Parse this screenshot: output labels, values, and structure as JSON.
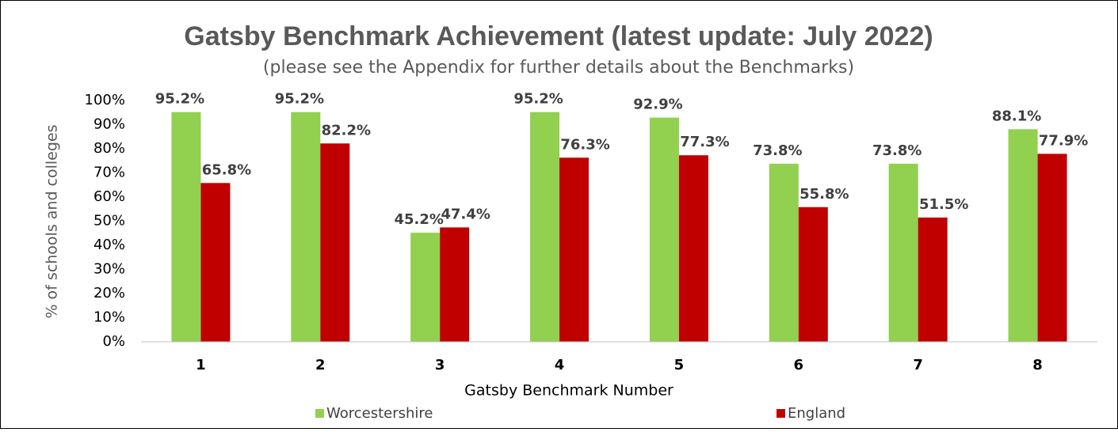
{
  "chart_data": {
    "type": "bar",
    "title": "Gatsby Benchmark Achievement (latest update: July 2022)",
    "subtitle": "(please see the Appendix for further details about the Benchmarks)",
    "x_label": "Gatsby Benchmark Number",
    "y_label": "% of schools and colleges",
    "categories": [
      "1",
      "2",
      "3",
      "4",
      "5",
      "6",
      "7",
      "8"
    ],
    "series": [
      {
        "name": "Worcestershire",
        "color": "#92d050",
        "values": [
          95.2,
          95.2,
          45.2,
          95.2,
          92.9,
          73.8,
          73.8,
          88.1
        ],
        "value_labels": [
          "95.2%",
          "95.2%",
          "45.2%",
          "95.2%",
          "92.9%",
          "73.8%",
          "73.8%",
          "88.1%"
        ]
      },
      {
        "name": "England",
        "color": "#c00000",
        "values": [
          65.8,
          82.2,
          47.4,
          76.3,
          77.3,
          55.8,
          51.5,
          77.9
        ],
        "value_labels": [
          "65.8%",
          "82.2%",
          "47.4%",
          "76.3%",
          "77.3%",
          "55.8%",
          "51.5%",
          "77.9%"
        ]
      }
    ],
    "ylim": [
      0,
      100
    ],
    "yticks": [
      {
        "value": 0,
        "label": "0%"
      },
      {
        "value": 10,
        "label": "10%"
      },
      {
        "value": 20,
        "label": "20%"
      },
      {
        "value": 30,
        "label": "30%"
      },
      {
        "value": 40,
        "label": "40%"
      },
      {
        "value": 50,
        "label": "50%"
      },
      {
        "value": 60,
        "label": "60%"
      },
      {
        "value": 70,
        "label": "70%"
      },
      {
        "value": 80,
        "label": "80%"
      },
      {
        "value": 90,
        "label": "90%"
      },
      {
        "value": 100,
        "label": "100%"
      }
    ],
    "grid": false,
    "legend": "bottom"
  }
}
